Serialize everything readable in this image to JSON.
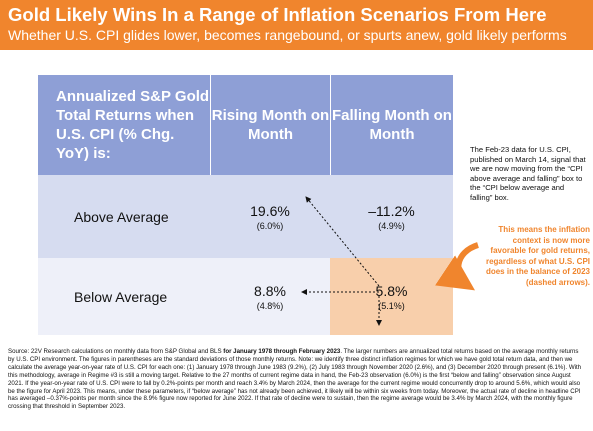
{
  "header": {
    "title": "Gold Likely Wins In a Range of Inflation Scenarios From Here",
    "subtitle": "Whether U.S. CPI glides lower, becomes rangebound, or spurts anew, gold likely performs"
  },
  "table": {
    "header": [
      "Annualized S&P Gold Total Returns when U.S. CPI (% Chg. YoY) is:",
      "Rising Month on Month",
      "Falling Month on Month"
    ],
    "rows": [
      {
        "label": "Above Average",
        "cells": [
          {
            "value": "19.6%",
            "sd": "(6.0%)"
          },
          {
            "value": "–11.2%",
            "sd": "(4.9%)"
          }
        ]
      },
      {
        "label": "Below Average",
        "cells": [
          {
            "value": "8.8%",
            "sd": "(4.8%)"
          },
          {
            "value": "5.8%",
            "sd": "(5.1%)"
          }
        ]
      }
    ]
  },
  "notes": {
    "side": "The Feb-23 data for U.S. CPI, published on March 14, signal that we are now moving from the “CPI above average and falling” box to the “CPI below average and falling” box.",
    "callout": "This means the inflation context is now more favorable for gold returns, regardless of what U.S. CPI does in the balance of 2023 (dashed arrows)."
  },
  "source": {
    "before": "Source: 22V Research calculations on monthly data from S&P Global and BLS ",
    "bold": "for January 1978 through February 2023",
    "after": ". The larger numbers are annualized total returns based on the average monthly returns by U.S. CPI environment. The figures in parentheses are the standard deviations of those monthly returns. Note: we identify three distinct inflation regimes for which we have gold total return data, and then we calculate the average year-on-year rate of U.S. CPI for each one: (1) January 1978 through June 1983 (9.2%), (2) July 1983 through November 2020 (2.6%), and (3) December 2020 through present (6.1%). With this methodology, average in Regime #3 is still a moving target. Relative to the 27 months of current regime data in hand, the Feb-23 observation (6.0%) is the first “below and falling” observation since August 2021. If the year-on-year rate of U.S. CPI were to fall by 0.2%-points per month and reach 3.4% by March 2024, then the average for the current regime would concurrently drop to around 5.6%, which would also be the figure for April 2023. This means, under these parameters, if “below average” has not already been achieved, it likely will be within six weeks from today. Moreover, the actual rate of decline in headline CPI has averaged –0.37%-points per month since the 8.9% figure now reported for June 2022. If that rate of decline were to sustain, then the regime average would be 3.4% by March 2024, with the monthly figure crossing that threshold in September 2023."
  }
}
